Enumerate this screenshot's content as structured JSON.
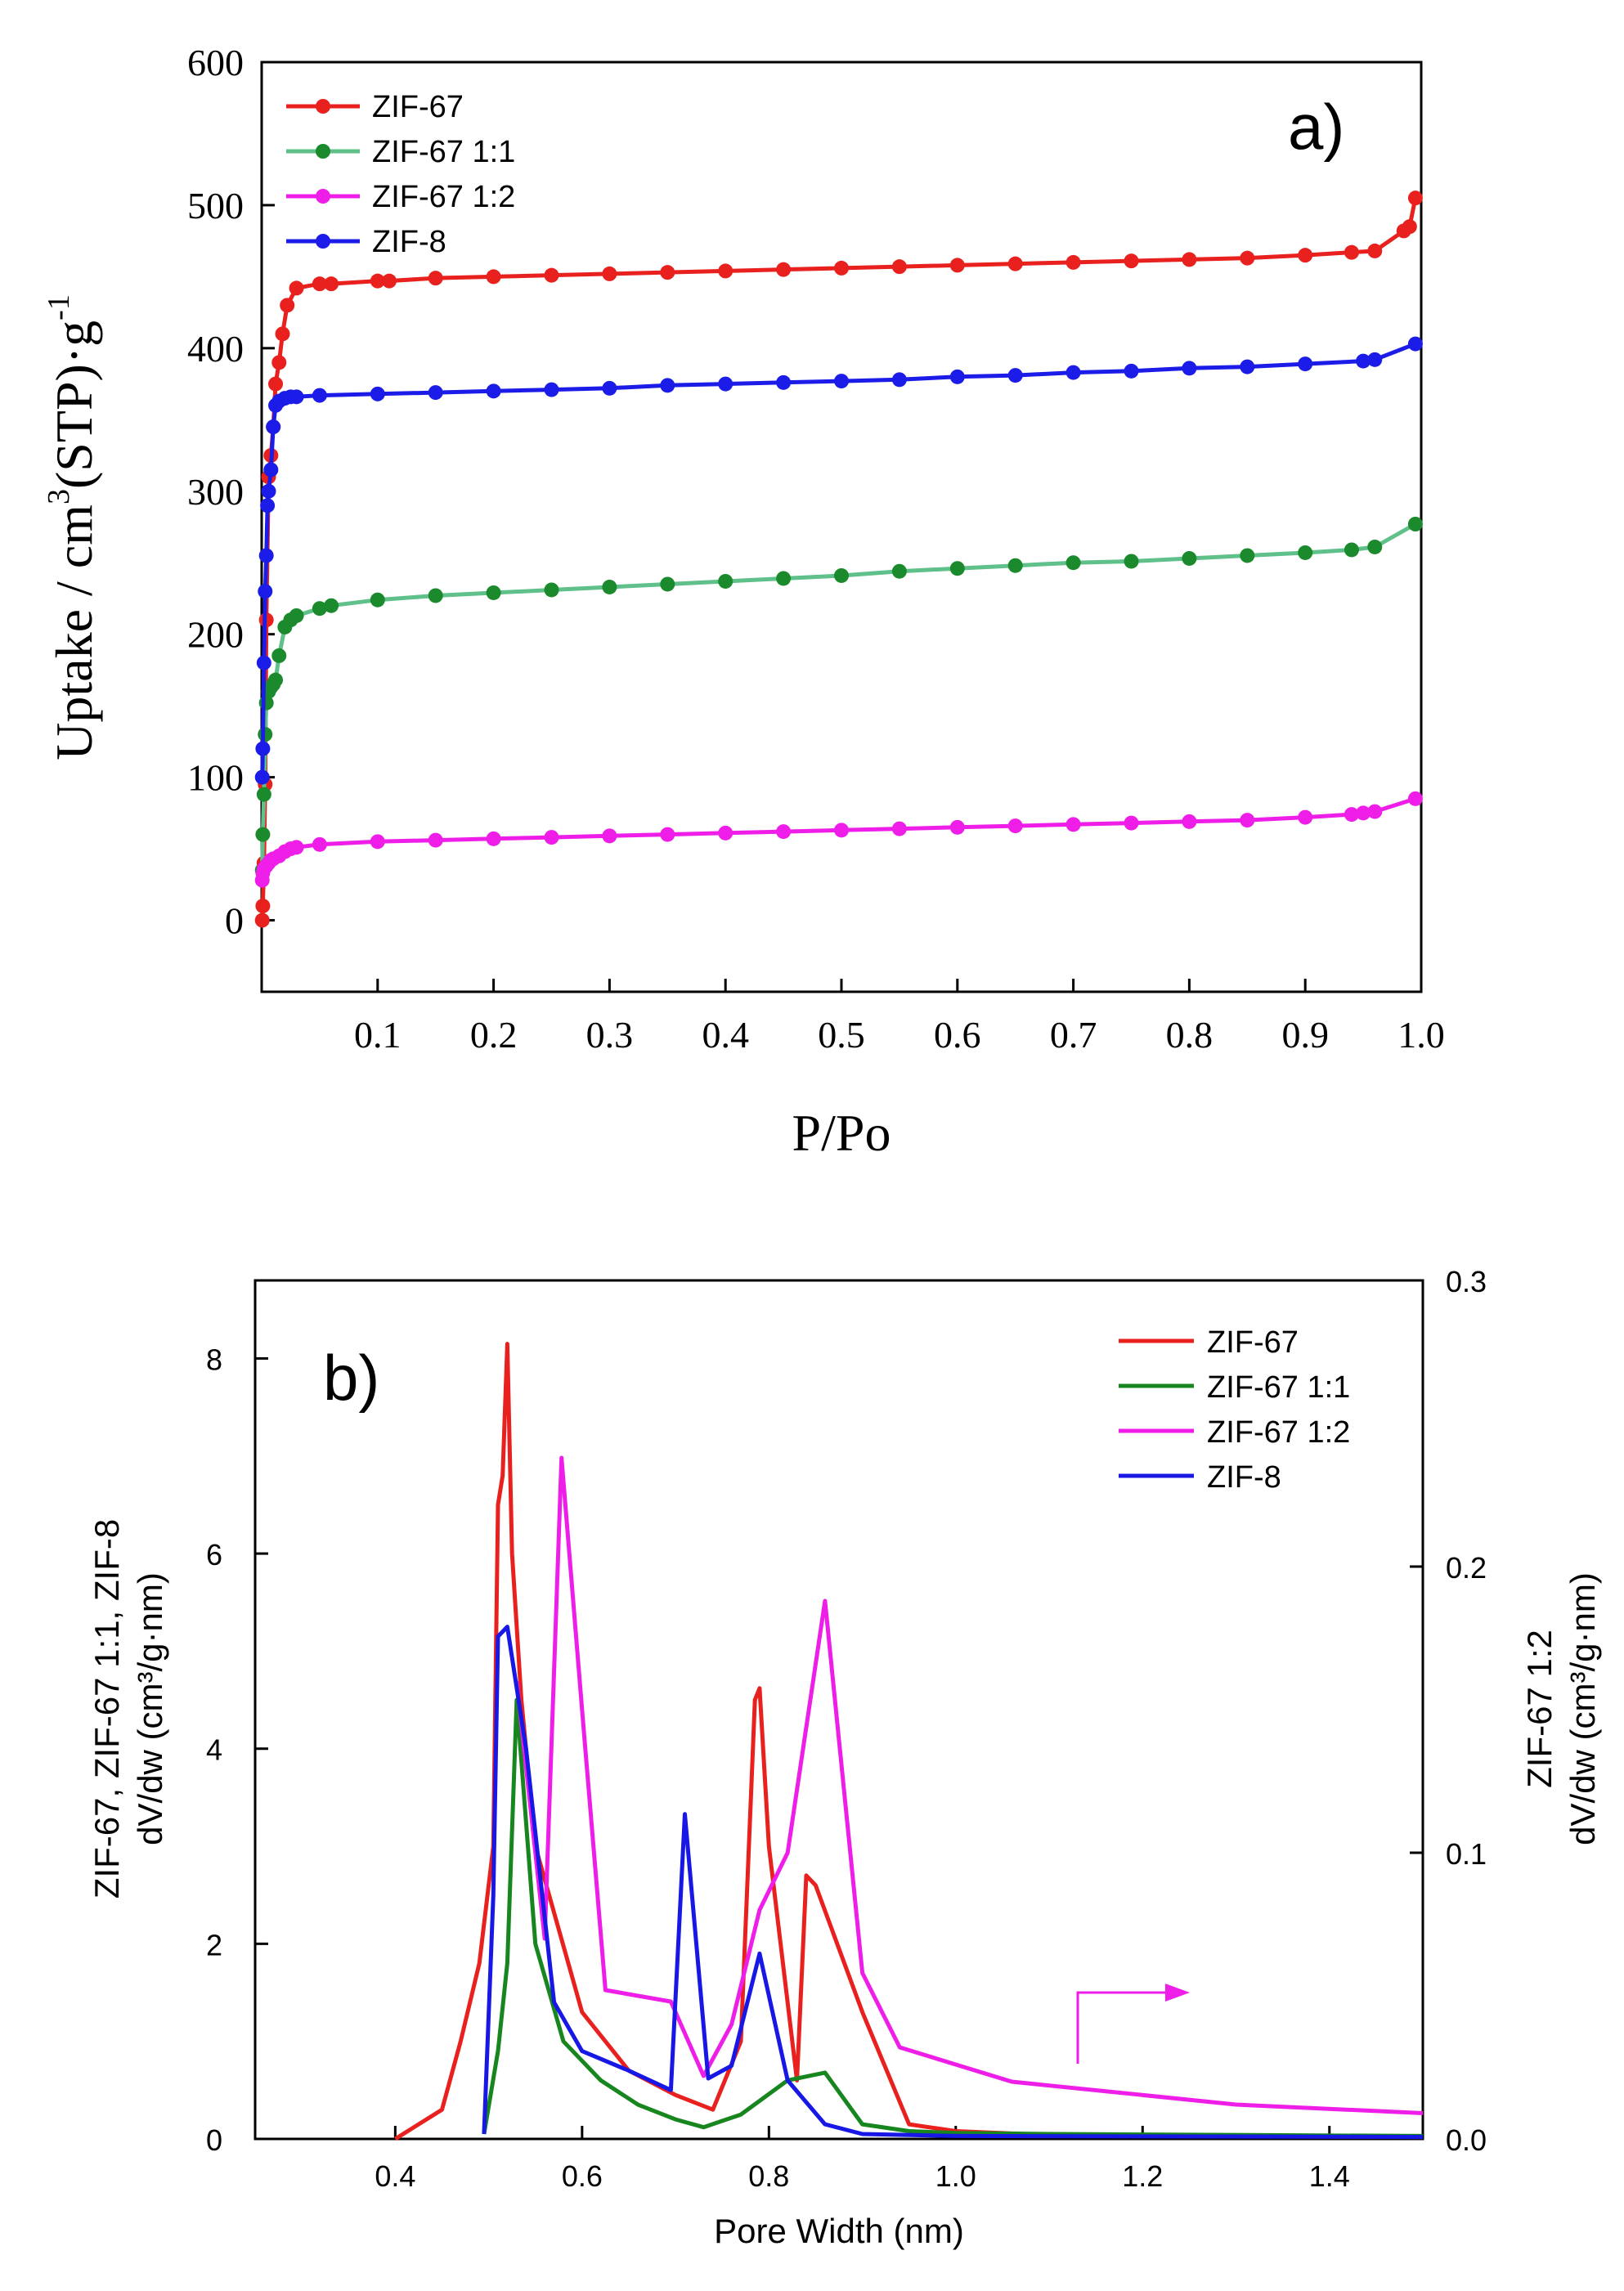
{
  "chart_data": [
    {
      "type": "line",
      "panel_label": "a)",
      "xlabel": "P/Po",
      "ylabel": "Uptake / cm³(STP)·g⁻¹",
      "ylabel_parts": {
        "main": "Uptake / cm",
        "sup1": "3",
        "mid": "(STP)·g",
        "sup2": "-1"
      },
      "xlim": [
        0,
        1.0
      ],
      "ylim": [
        -50,
        600
      ],
      "x_ticks": [
        0.1,
        0.2,
        0.3,
        0.4,
        0.5,
        0.6,
        0.7,
        0.8,
        0.9,
        1.0
      ],
      "x_tick_labels": [
        "0.1",
        "0.2",
        "0.3",
        "0.4",
        "0.5",
        "0.6",
        "0.7",
        "0.8",
        "0.9",
        "1.0"
      ],
      "y_ticks": [
        0,
        100,
        200,
        300,
        400,
        500,
        600
      ],
      "y_tick_labels": [
        "0",
        "100",
        "200",
        "300",
        "400",
        "500",
        "600"
      ],
      "legend_position": "top-left",
      "grid": false,
      "markers": true,
      "series": [
        {
          "name": "ZIF-67",
          "color": "#e8211f",
          "x": [
            0.0005,
            0.001,
            0.002,
            0.003,
            0.004,
            0.006,
            0.008,
            0.01,
            0.012,
            0.015,
            0.018,
            0.022,
            0.03,
            0.05,
            0.06,
            0.1,
            0.11,
            0.15,
            0.2,
            0.25,
            0.3,
            0.35,
            0.4,
            0.45,
            0.5,
            0.55,
            0.6,
            0.65,
            0.7,
            0.75,
            0.8,
            0.85,
            0.9,
            0.94,
            0.96,
            0.985,
            0.99,
            0.995
          ],
          "y": [
            0,
            10,
            40,
            95,
            210,
            310,
            325,
            345,
            375,
            390,
            410,
            430,
            442,
            445,
            445,
            447,
            447,
            449,
            450,
            451,
            452,
            453,
            454,
            455,
            456,
            457,
            458,
            459,
            460,
            461,
            462,
            463,
            465,
            467,
            468,
            482,
            485,
            505
          ]
        },
        {
          "name": "ZIF-67 1:1",
          "color": "#1a8a2c",
          "line_color": "#5fc08a",
          "x": [
            0.0005,
            0.001,
            0.002,
            0.003,
            0.004,
            0.006,
            0.008,
            0.01,
            0.012,
            0.015,
            0.02,
            0.025,
            0.03,
            0.05,
            0.06,
            0.1,
            0.15,
            0.2,
            0.25,
            0.3,
            0.35,
            0.4,
            0.45,
            0.5,
            0.55,
            0.6,
            0.65,
            0.7,
            0.75,
            0.8,
            0.85,
            0.9,
            0.94,
            0.96,
            0.995
          ],
          "y": [
            35,
            60,
            88,
            130,
            152,
            160,
            163,
            165,
            168,
            185,
            205,
            210,
            213,
            218,
            220,
            224,
            227,
            229,
            231,
            233,
            235,
            237,
            239,
            241,
            244,
            246,
            248,
            250,
            251,
            253,
            255,
            257,
            259,
            261,
            277
          ]
        },
        {
          "name": "ZIF-67 1:2",
          "color": "#ee1ee8",
          "x": [
            0.0005,
            0.001,
            0.002,
            0.004,
            0.006,
            0.008,
            0.01,
            0.015,
            0.02,
            0.025,
            0.03,
            0.05,
            0.1,
            0.15,
            0.2,
            0.25,
            0.3,
            0.35,
            0.4,
            0.45,
            0.5,
            0.55,
            0.6,
            0.65,
            0.7,
            0.75,
            0.8,
            0.85,
            0.9,
            0.94,
            0.95,
            0.96,
            0.995
          ],
          "y": [
            28,
            33,
            36,
            38,
            40,
            42,
            43,
            45,
            48,
            50,
            51,
            53,
            55,
            56,
            57,
            58,
            59,
            60,
            61,
            62,
            63,
            64,
            65,
            66,
            67,
            68,
            69,
            70,
            72,
            74,
            75,
            76,
            85
          ]
        },
        {
          "name": "ZIF-8",
          "color": "#1c1ce8",
          "x": [
            0.0005,
            0.001,
            0.002,
            0.003,
            0.004,
            0.005,
            0.006,
            0.008,
            0.01,
            0.012,
            0.015,
            0.02,
            0.025,
            0.03,
            0.05,
            0.1,
            0.15,
            0.2,
            0.25,
            0.3,
            0.35,
            0.4,
            0.45,
            0.5,
            0.55,
            0.6,
            0.65,
            0.7,
            0.75,
            0.8,
            0.85,
            0.9,
            0.95,
            0.96,
            0.995
          ],
          "y": [
            100,
            120,
            180,
            230,
            255,
            290,
            300,
            315,
            345,
            360,
            363,
            365,
            366,
            366,
            367,
            368,
            369,
            370,
            371,
            372,
            374,
            375,
            376,
            377,
            378,
            380,
            381,
            383,
            384,
            386,
            387,
            389,
            391,
            392,
            403
          ]
        }
      ]
    },
    {
      "type": "line",
      "panel_label": "b)",
      "xlabel": "Pore Width (nm)",
      "ylabel_left_line1": "ZIF-67, ZIF-67 1:1, ZIF-8",
      "ylabel_left_line2": "dV/dw (cm³/g·nm)",
      "ylabel_right_line1": "ZIF-67 1:2",
      "ylabel_right_line2": "dV/dw (cm³/g·nm)",
      "xlim": [
        0.25,
        1.5
      ],
      "ylim_left": [
        0,
        8.8
      ],
      "ylim_right": [
        0,
        0.3
      ],
      "x_ticks": [
        0.4,
        0.6,
        0.8,
        1.0,
        1.2,
        1.4
      ],
      "x_tick_labels": [
        "0.4",
        "0.6",
        "0.8",
        "1.0",
        "1.2",
        "1.4"
      ],
      "y_ticks_left": [
        0,
        2,
        4,
        6,
        8
      ],
      "y_tick_labels_left": [
        "0",
        "2",
        "4",
        "6",
        "8"
      ],
      "y_ticks_right": [
        0,
        0.1,
        0.2,
        0.3
      ],
      "y_tick_labels_right": [
        "0.0",
        "0.1",
        "0.2",
        "0.3"
      ],
      "legend_position": "top-right",
      "grid": false,
      "markers": false,
      "arrow_color": "#ee1ee8",
      "series": [
        {
          "name": "ZIF-67",
          "color": "#e8211f",
          "axis": "left",
          "x": [
            0.4,
            0.45,
            0.47,
            0.49,
            0.505,
            0.51,
            0.515,
            0.52,
            0.525,
            0.535,
            0.55,
            0.6,
            0.65,
            0.7,
            0.74,
            0.77,
            0.785,
            0.79,
            0.8,
            0.83,
            0.84,
            0.85,
            0.9,
            0.95,
            1.0,
            1.1,
            1.2,
            1.5
          ],
          "y": [
            0,
            0.3,
            1.0,
            1.8,
            3.0,
            6.5,
            6.8,
            8.15,
            6.0,
            4.5,
            3.0,
            1.3,
            0.7,
            0.45,
            0.3,
            1.0,
            4.5,
            4.62,
            3.0,
            0.6,
            2.7,
            2.6,
            1.3,
            0.15,
            0.08,
            0.04,
            0.03,
            0.02
          ]
        },
        {
          "name": "ZIF-67 1:1",
          "color": "#17861e",
          "axis": "left",
          "x": [
            0.495,
            0.51,
            0.52,
            0.53,
            0.55,
            0.58,
            0.62,
            0.66,
            0.7,
            0.73,
            0.77,
            0.82,
            0.86,
            0.9,
            0.95,
            1.0,
            1.1,
            1.5
          ],
          "y": [
            0.05,
            0.9,
            1.8,
            4.5,
            2.0,
            1.0,
            0.6,
            0.35,
            0.2,
            0.12,
            0.25,
            0.6,
            0.68,
            0.15,
            0.08,
            0.06,
            0.05,
            0.03
          ]
        },
        {
          "name": "ZIF-67 1:2",
          "color": "#ee1ee8",
          "axis": "right",
          "x": [
            0.53,
            0.56,
            0.578,
            0.6,
            0.625,
            0.695,
            0.73,
            0.76,
            0.79,
            0.82,
            0.86,
            0.9,
            0.94,
            1.06,
            1.3,
            1.5
          ],
          "y": [
            0.16,
            0.07,
            0.238,
            0.15,
            0.052,
            0.048,
            0.022,
            0.04,
            0.08,
            0.1,
            0.188,
            0.058,
            0.032,
            0.02,
            0.012,
            0.009
          ]
        },
        {
          "name": "ZIF-8",
          "color": "#1717e6",
          "axis": "left",
          "x": [
            0.495,
            0.505,
            0.51,
            0.52,
            0.54,
            0.57,
            0.6,
            0.65,
            0.695,
            0.71,
            0.735,
            0.76,
            0.79,
            0.82,
            0.86,
            0.9,
            1.0,
            1.5
          ],
          "y": [
            0.05,
            2.5,
            5.15,
            5.25,
            4.0,
            1.4,
            0.9,
            0.7,
            0.5,
            3.33,
            0.62,
            0.75,
            1.9,
            0.6,
            0.15,
            0.05,
            0.03,
            0.02
          ]
        }
      ]
    }
  ]
}
